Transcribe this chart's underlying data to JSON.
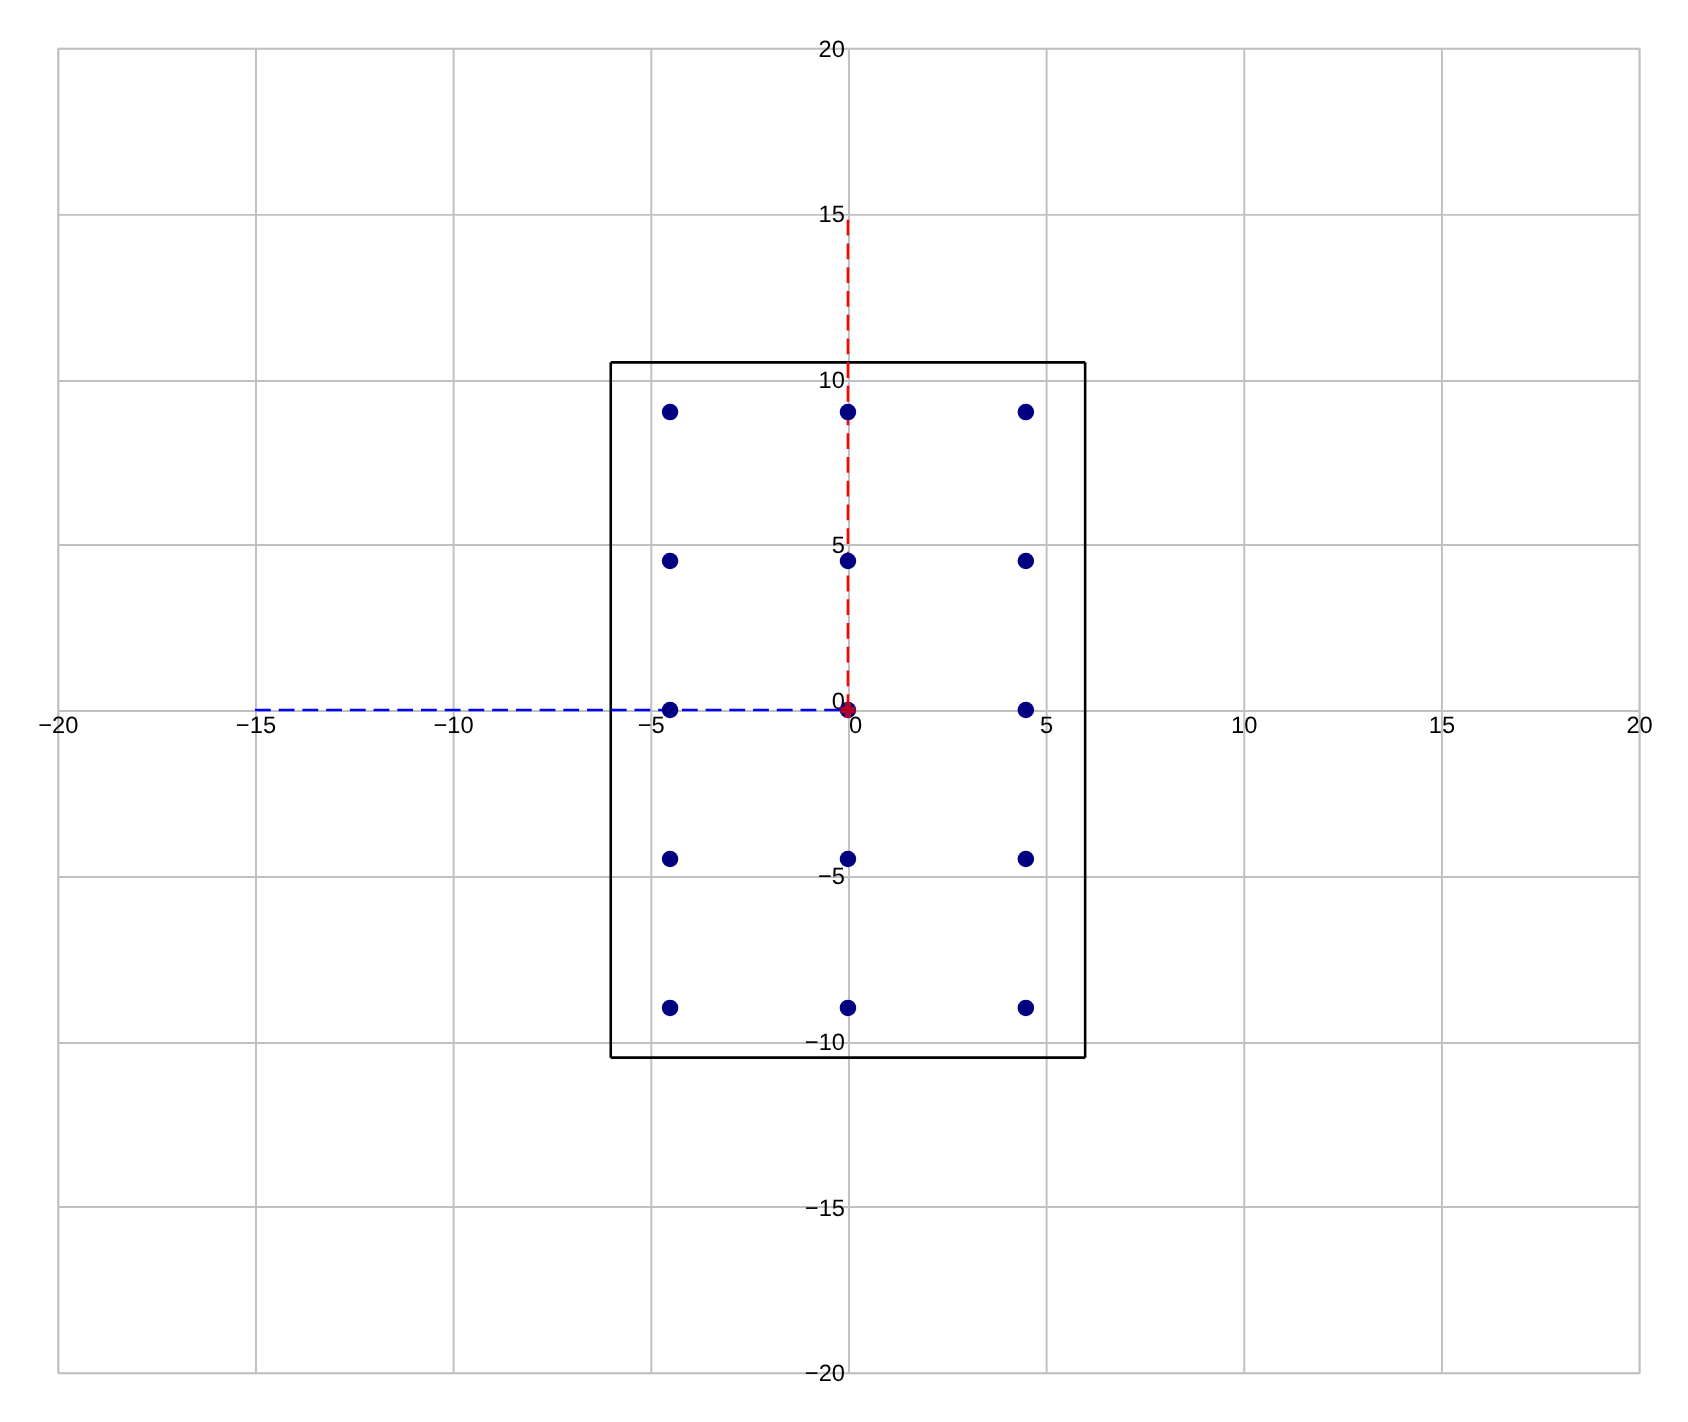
{
  "chart_data": {
    "type": "scatter",
    "xlim": [
      -20,
      20
    ],
    "ylim": [
      -20,
      20
    ],
    "xticks": [
      -20,
      -15,
      -10,
      -5,
      0,
      5,
      10,
      15,
      20
    ],
    "yticks": [
      -20,
      -15,
      -10,
      -5,
      0,
      5,
      10,
      15,
      20
    ],
    "grid": true,
    "series": [
      {
        "type": "line",
        "color": "#000000",
        "line_style": "solid",
        "x": [
          -6,
          6
        ],
        "values": [
          -10.5,
          -10.5
        ]
      },
      {
        "type": "line",
        "color": "#000000",
        "line_style": "solid",
        "x": [
          6,
          6
        ],
        "values": [
          -10.5,
          10.5
        ]
      },
      {
        "type": "line",
        "color": "#000000",
        "line_style": "solid",
        "x": [
          -6,
          6
        ],
        "values": [
          10.5,
          10.5
        ]
      },
      {
        "type": "line",
        "color": "#000000",
        "line_style": "solid",
        "x": [
          -6,
          -6
        ],
        "values": [
          -10.5,
          10.5
        ]
      },
      {
        "type": "line",
        "color": "#ff0000",
        "line_style": "dashed",
        "x": [
          0,
          0
        ],
        "values": [
          0,
          15
        ]
      },
      {
        "type": "line",
        "color": "#0000ff",
        "line_style": "dashed",
        "x": [
          -15,
          0
        ],
        "values": [
          0,
          0
        ]
      },
      {
        "color": "#000080",
        "marker": "circle",
        "x": [
          -4.5,
          0,
          4.5,
          -4.5,
          0,
          4.5,
          -4.5,
          0,
          4.5,
          -4.5,
          0,
          4.5,
          -4.5,
          0,
          4.5
        ],
        "values": [
          9,
          9,
          9,
          4.5,
          4.5,
          4.5,
          0,
          0,
          0,
          -4.5,
          -4.5,
          -4.5,
          -9,
          -9,
          -9
        ]
      },
      {
        "color": "#ff0000",
        "marker": "cross",
        "x": [
          0
        ],
        "values": [
          0
        ]
      }
    ]
  }
}
